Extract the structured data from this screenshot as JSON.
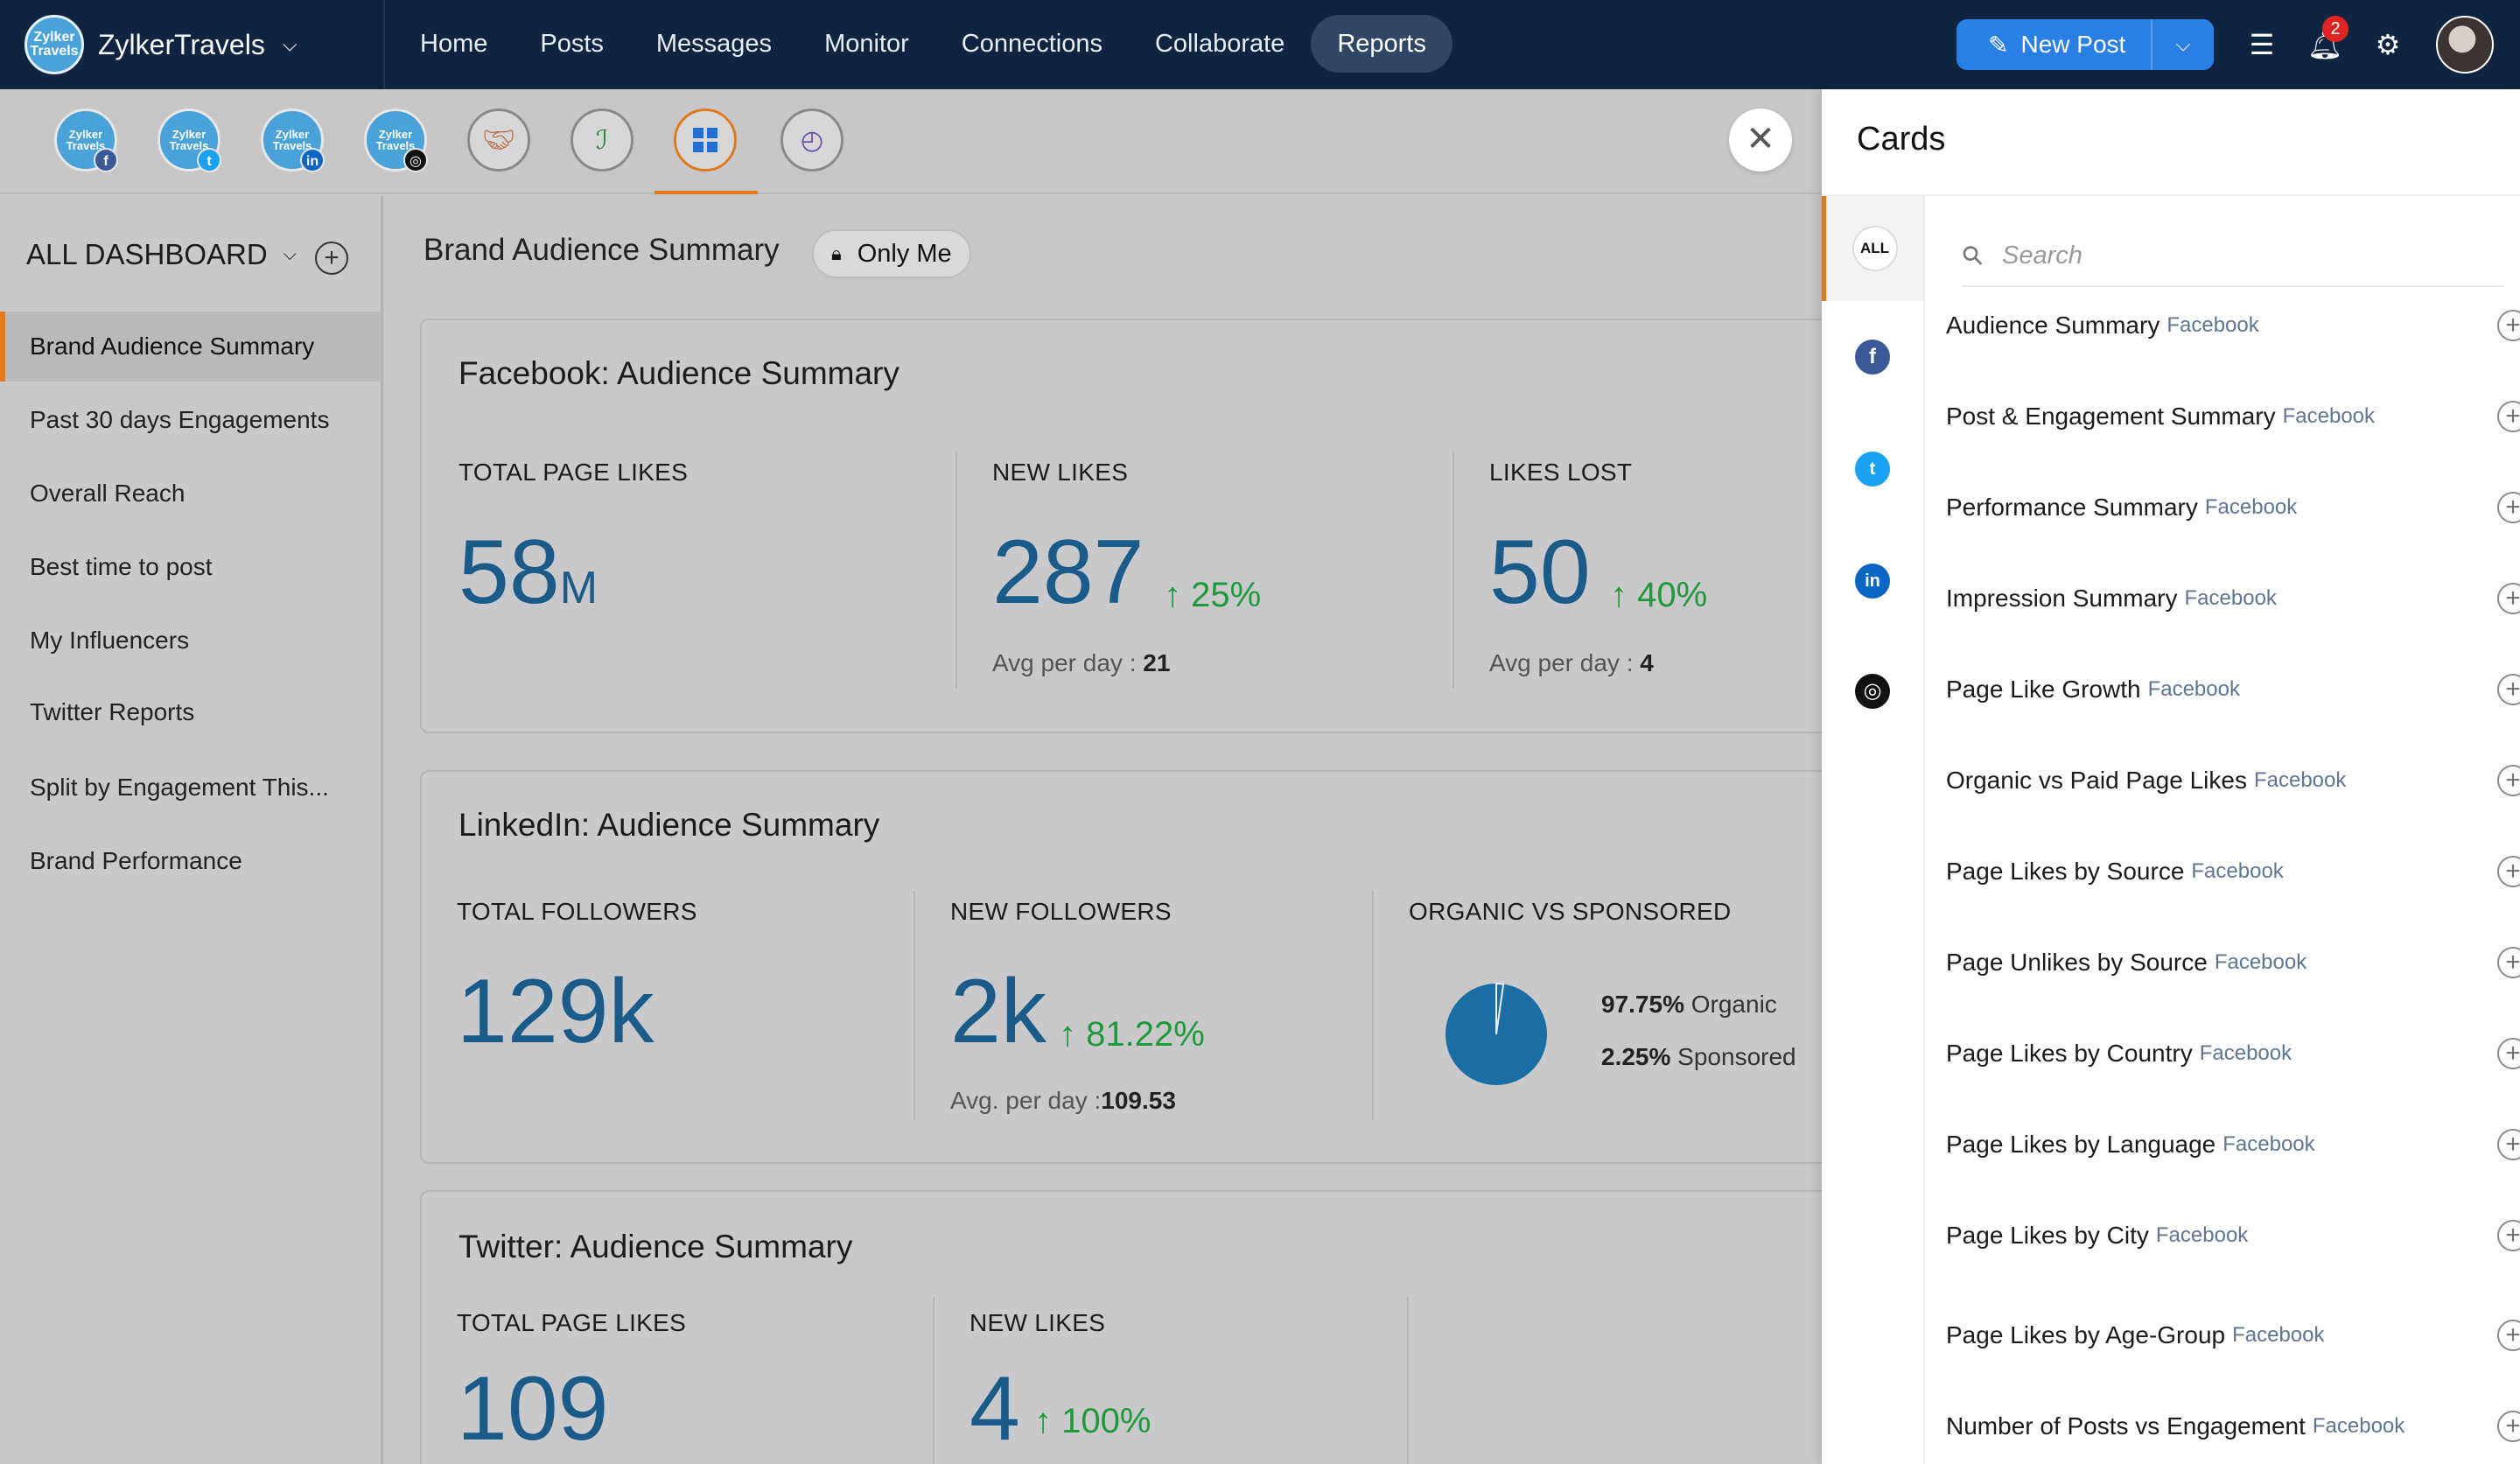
{
  "brand": {
    "name": "ZylkerTravels",
    "logo_text": "Zylker Travels"
  },
  "nav": [
    "Home",
    "Posts",
    "Messages",
    "Monitor",
    "Connections",
    "Collaborate",
    "Reports"
  ],
  "new_post": {
    "label": "New Post"
  },
  "notifications": {
    "count": "2"
  },
  "channels": [
    {
      "name": "Zylker Travels",
      "badge": "facebook"
    },
    {
      "name": "Zylker Travels",
      "badge": "twitter"
    },
    {
      "name": "Zylker Travels",
      "badge": "linkedin"
    },
    {
      "name": "Zylker Travels",
      "badge": "instagram"
    }
  ],
  "sidebar": {
    "header": "ALL DASHBOARD",
    "items": [
      "Brand Audience Summary",
      "Past 30 days Engagements",
      "Overall Reach",
      "Best time to post",
      "My Influencers",
      "Twitter Reports",
      "Split by Engagement This...",
      "Brand Performance"
    ]
  },
  "main": {
    "title": "Brand Audience Summary",
    "visibility": "Only Me",
    "cards": {
      "facebook": {
        "title": "Facebook: Audience Summary",
        "total_label": "TOTAL PAGE LIKES",
        "total_value": "58",
        "total_unit": "M",
        "new_label": "NEW LIKES",
        "new_value": "287",
        "new_change": "↑ 25%",
        "new_avg_label": "Avg per day : ",
        "new_avg_value": "21",
        "lost_label": "LIKES LOST",
        "lost_value": "50",
        "lost_change": "↑ 40%",
        "lost_avg_label": "Avg per day : ",
        "lost_avg_value": "4"
      },
      "linkedin": {
        "title": "LinkedIn: Audience Summary",
        "total_label": "TOTAL FOLLOWERS",
        "total_value": "129k",
        "new_label": "NEW FOLLOWERS",
        "new_value": "2k",
        "new_change": "↑ 81.22%",
        "new_avg_label": "Avg. per day :",
        "new_avg_value": "109.53",
        "split_label": "ORGANIC VS SPONSORED",
        "organic_pct": "97.75%",
        "organic_label": " Organic",
        "sponsored_pct": "2.25%",
        "sponsored_label": " Sponsored",
        "organic_share": 0.9775
      },
      "twitter": {
        "title": "Twitter: Audience Summary",
        "total_label": "TOTAL PAGE LIKES",
        "total_value": "109",
        "new_label": "NEW LIKES",
        "new_value": "4",
        "new_change": "↑ 100%"
      }
    }
  },
  "panel": {
    "title": "Cards",
    "rail_all": "ALL",
    "search_placeholder": "Search",
    "items": [
      {
        "name": "Audience Summary",
        "source": "Facebook"
      },
      {
        "name": "Post & Engagement Summary",
        "source": "Facebook"
      },
      {
        "name": "Performance Summary",
        "source": "Facebook"
      },
      {
        "name": "Impression Summary",
        "source": "Facebook"
      },
      {
        "name": "Page Like Growth",
        "source": "Facebook"
      },
      {
        "name": "Organic vs Paid Page Likes",
        "source": "Facebook"
      },
      {
        "name": "Page Likes by Source",
        "source": "Facebook"
      },
      {
        "name": "Page Unlikes by Source",
        "source": "Facebook"
      },
      {
        "name": "Page Likes by Country",
        "source": "Facebook"
      },
      {
        "name": "Page Likes by Language",
        "source": "Facebook"
      },
      {
        "name": "Page Likes by City",
        "source": "Facebook"
      },
      {
        "name": "Page Likes by Age-Group",
        "source": "Facebook"
      },
      {
        "name": "Number of Posts vs Engagement",
        "source": "Facebook"
      }
    ]
  },
  "colors": {
    "nav_bg": "#0e2440",
    "accent": "#e07a1e",
    "primary_button": "#2a7fe4",
    "metric_blue": "#1a5b8a",
    "growth_green": "#1f9a3a",
    "facebook": "#3b5998",
    "twitter": "#1da1f2",
    "linkedin": "#0a66c2",
    "instagram": "#111111"
  }
}
